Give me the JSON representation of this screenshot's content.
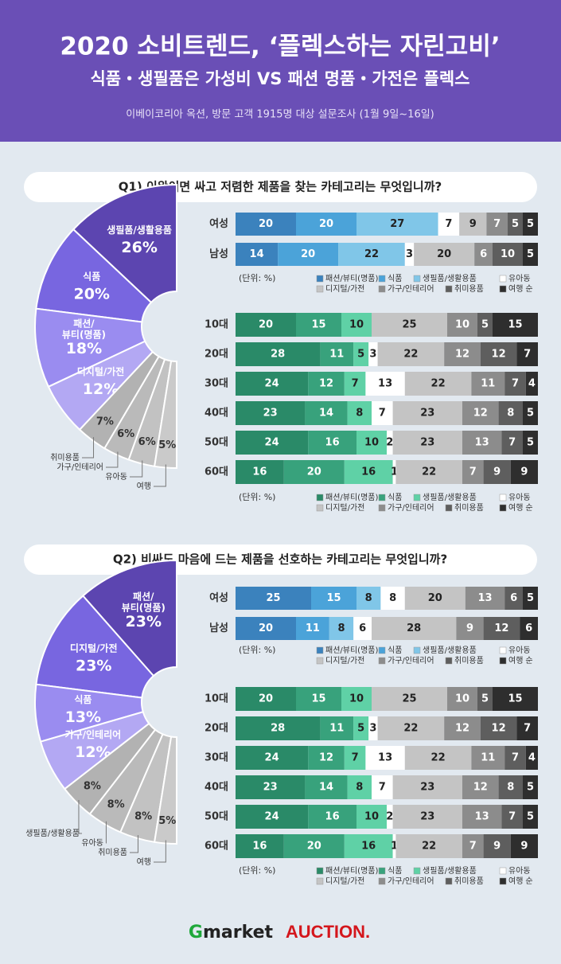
{
  "header": {
    "title": "2020 소비트렌드, ‘플렉스하는 자린고비’",
    "subtitle": "식품・생필품은 가성비 VS 패션 명품・가전은 플렉스",
    "source": "이베이코리아 옥션, 방문 고객 1915명 대상 설문조사 (1월 9일~16일)"
  },
  "footer": {
    "logos": [
      "Gmarket",
      "AUCTION."
    ]
  },
  "chart_data": [
    {
      "type": "pie",
      "title": "Q1) 이왕이면 싸고 저렴한 제품을 찾는 카테고리는 무엇입니까?",
      "categories": [
        "생필품/생활용품",
        "식품",
        "패션/뷰티(명품)",
        "디지털/가전",
        "취미용품",
        "가구/인테리어",
        "유아동",
        "여행"
      ],
      "values": [
        26,
        20,
        18,
        12,
        7,
        6,
        6,
        5
      ],
      "value_labels": [
        "26%",
        "20%",
        "18%",
        "12%",
        "7%",
        "6%",
        "6%",
        "5%"
      ],
      "colors": [
        "#5c45b0",
        "#7866e0",
        "#9a8cf0",
        "#b3a8f3",
        "#b2b2b2",
        "#bababa",
        "#c2c2c2",
        "#cacaca"
      ]
    },
    {
      "type": "bar",
      "unit_label": "(단위: %)",
      "legend_suffix": "순",
      "categories": [
        "여성",
        "남성"
      ],
      "series": [
        {
          "name": "패션/뷰티(명품)",
          "color": "#3b82bd",
          "values": [
            20,
            14
          ]
        },
        {
          "name": "식품",
          "color": "#4ba3d9",
          "values": [
            20,
            20
          ]
        },
        {
          "name": "생필품/생활용품",
          "color": "#80c6e8",
          "values": [
            27,
            22
          ]
        },
        {
          "name": "유아동",
          "color": "#ffffff",
          "values": [
            7,
            3
          ]
        },
        {
          "name": "디지털/가전",
          "color": "#c4c4c4",
          "values": [
            9,
            20
          ]
        },
        {
          "name": "가구/인테리어",
          "color": "#8c8c8c",
          "values": [
            7,
            6
          ]
        },
        {
          "name": "취미용품",
          "color": "#5e5e5e",
          "values": [
            5,
            10
          ]
        },
        {
          "name": "여행",
          "color": "#2e2e2e",
          "values": [
            5,
            5
          ]
        }
      ]
    },
    {
      "type": "bar",
      "unit_label": "(단위: %)",
      "legend_suffix": "순",
      "categories": [
        "10대",
        "20대",
        "30대",
        "40대",
        "50대",
        "60대"
      ],
      "series": [
        {
          "name": "패션/뷰티(명품)",
          "color": "#2a8a68",
          "values": [
            20,
            28,
            24,
            23,
            24,
            16
          ]
        },
        {
          "name": "식품",
          "color": "#38a27c",
          "values": [
            15,
            11,
            12,
            14,
            16,
            20
          ]
        },
        {
          "name": "생필품/생활용품",
          "color": "#5fd1a6",
          "values": [
            10,
            5,
            7,
            8,
            10,
            16
          ]
        },
        {
          "name": "유아동",
          "color": "#ffffff",
          "values": [
            null,
            3,
            13,
            7,
            2,
            1
          ]
        },
        {
          "name": "디지털/가전",
          "color": "#c4c4c4",
          "values": [
            25,
            22,
            22,
            23,
            23,
            22
          ]
        },
        {
          "name": "가구/인테리어",
          "color": "#8c8c8c",
          "values": [
            10,
            12,
            11,
            12,
            13,
            7
          ]
        },
        {
          "name": "취미용품",
          "color": "#5e5e5e",
          "values": [
            5,
            12,
            7,
            8,
            7,
            9
          ]
        },
        {
          "name": "여행",
          "color": "#2e2e2e",
          "values": [
            15,
            7,
            4,
            5,
            5,
            9
          ]
        }
      ]
    },
    {
      "type": "pie",
      "title": "Q2) 비싸도 마음에 드는 제품을 선호하는 카테고리는 무엇입니까?",
      "categories": [
        "패션/뷰티(명품)",
        "디지털/가전",
        "식품",
        "가구/인테리어",
        "생필품/생활용품",
        "유아동",
        "취미용품",
        "여행"
      ],
      "values": [
        23,
        23,
        13,
        12,
        8,
        8,
        8,
        5
      ],
      "value_labels": [
        "23%",
        "23%",
        "13%",
        "12%",
        "8%",
        "8%",
        "8%",
        "5%"
      ],
      "colors": [
        "#5c45b0",
        "#7866e0",
        "#9a8cf0",
        "#b3a8f3",
        "#b2b2b2",
        "#bababa",
        "#c2c2c2",
        "#cacaca"
      ]
    },
    {
      "type": "bar",
      "unit_label": "(단위: %)",
      "legend_suffix": "순",
      "categories": [
        "여성",
        "남성"
      ],
      "series": [
        {
          "name": "패션/뷰티(명품)",
          "color": "#3b82bd",
          "values": [
            25,
            20
          ]
        },
        {
          "name": "식품",
          "color": "#4ba3d9",
          "values": [
            15,
            11
          ]
        },
        {
          "name": "생필품/생활용품",
          "color": "#80c6e8",
          "values": [
            8,
            8
          ]
        },
        {
          "name": "유아동",
          "color": "#ffffff",
          "values": [
            8,
            6
          ]
        },
        {
          "name": "디지털/가전",
          "color": "#c4c4c4",
          "values": [
            20,
            28
          ]
        },
        {
          "name": "가구/인테리어",
          "color": "#8c8c8c",
          "values": [
            13,
            9
          ]
        },
        {
          "name": "취미용품",
          "color": "#5e5e5e",
          "values": [
            6,
            12
          ]
        },
        {
          "name": "여행",
          "color": "#2e2e2e",
          "values": [
            5,
            6
          ]
        }
      ]
    },
    {
      "type": "bar",
      "unit_label": "(단위: %)",
      "legend_suffix": "순",
      "categories": [
        "10대",
        "20대",
        "30대",
        "40대",
        "50대",
        "60대"
      ],
      "series": [
        {
          "name": "패션/뷰티(명품)",
          "color": "#2a8a68",
          "values": [
            20,
            28,
            24,
            23,
            24,
            16
          ]
        },
        {
          "name": "식품",
          "color": "#38a27c",
          "values": [
            15,
            11,
            12,
            14,
            16,
            20
          ]
        },
        {
          "name": "생필품/생활용품",
          "color": "#5fd1a6",
          "values": [
            10,
            5,
            7,
            8,
            10,
            16
          ]
        },
        {
          "name": "유아동",
          "color": "#ffffff",
          "values": [
            null,
            3,
            13,
            7,
            2,
            1
          ]
        },
        {
          "name": "디지털/가전",
          "color": "#c4c4c4",
          "values": [
            25,
            22,
            22,
            23,
            23,
            22
          ]
        },
        {
          "name": "가구/인테리어",
          "color": "#8c8c8c",
          "values": [
            10,
            12,
            11,
            12,
            13,
            7
          ]
        },
        {
          "name": "취미용품",
          "color": "#5e5e5e",
          "values": [
            5,
            12,
            7,
            8,
            7,
            9
          ]
        },
        {
          "name": "여행",
          "color": "#2e2e2e",
          "values": [
            15,
            7,
            4,
            5,
            5,
            9
          ]
        }
      ]
    }
  ]
}
